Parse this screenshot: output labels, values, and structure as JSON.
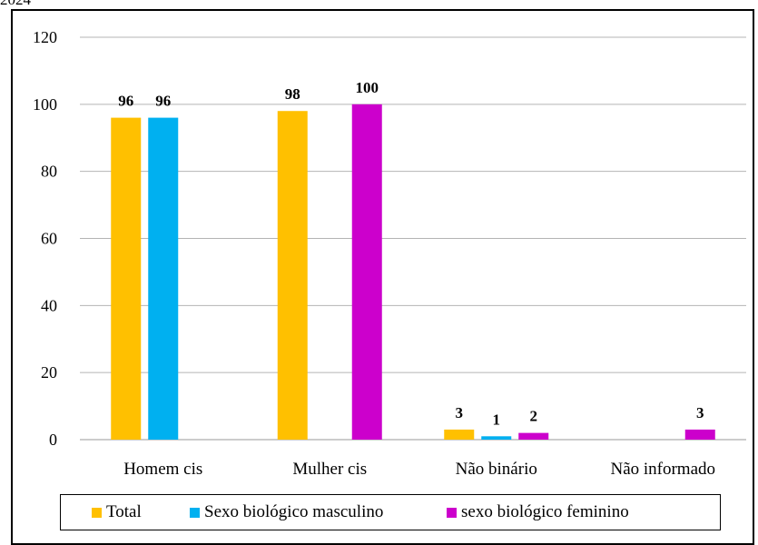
{
  "top_text": "2024",
  "chart_data": {
    "type": "bar",
    "categories": [
      "Homem cis",
      "Mulher cis",
      "Não binário",
      "Não informado"
    ],
    "series": [
      {
        "name": "Total",
        "color": "#FFC000",
        "values": [
          96,
          98,
          3,
          null
        ]
      },
      {
        "name": "Sexo biológico masculino",
        "color": "#00B0F0",
        "values": [
          96,
          null,
          1,
          null
        ]
      },
      {
        "name": "sexo biológico feminino",
        "color": "#CC00CC",
        "values": [
          null,
          100,
          2,
          3
        ]
      }
    ],
    "ylim": [
      0,
      120
    ],
    "yticks": [
      0,
      20,
      40,
      60,
      80,
      100,
      120
    ],
    "grid": true,
    "legend_position": "bottom"
  }
}
